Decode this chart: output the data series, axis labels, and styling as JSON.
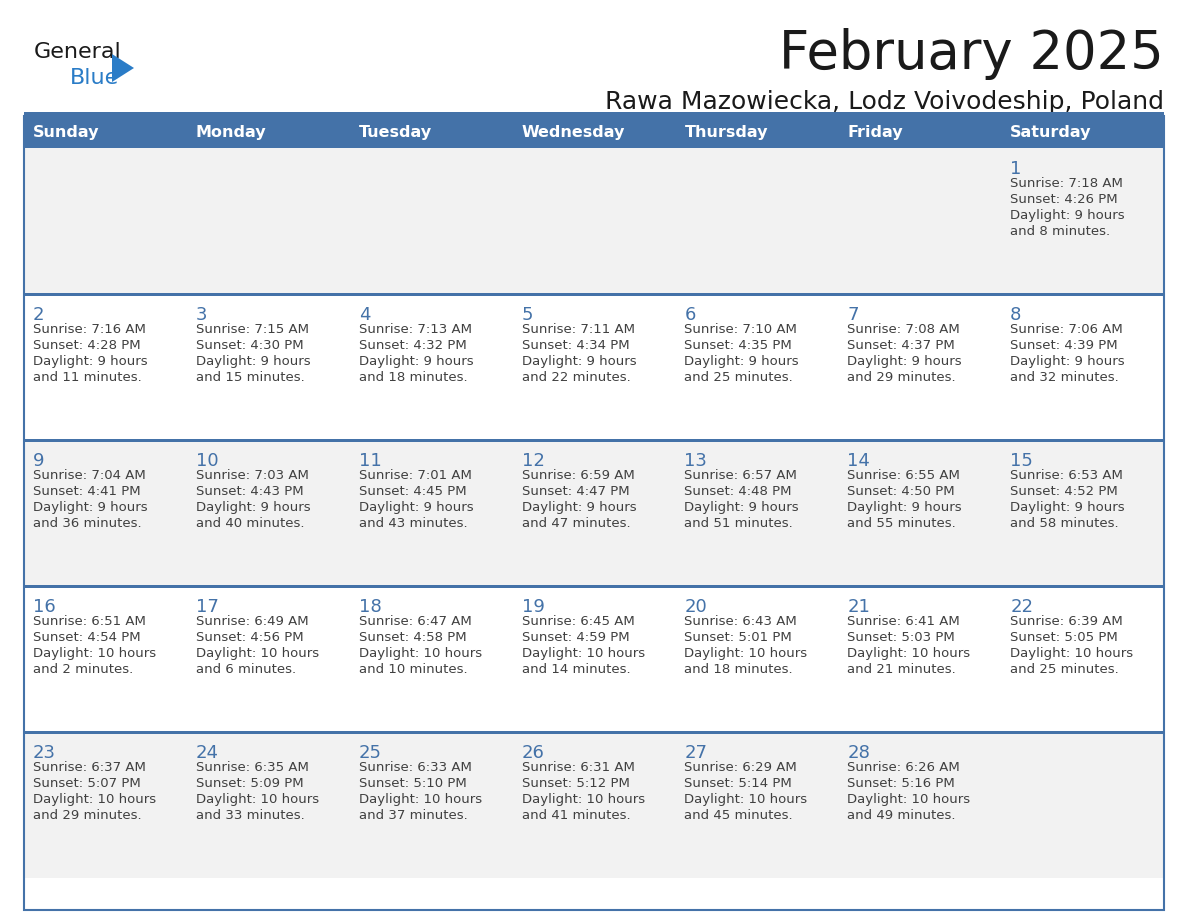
{
  "title": "February 2025",
  "subtitle": "Rawa Mazowiecka, Lodz Voivodeship, Poland",
  "days_of_week": [
    "Sunday",
    "Monday",
    "Tuesday",
    "Wednesday",
    "Thursday",
    "Friday",
    "Saturday"
  ],
  "header_bg": "#4472A8",
  "header_text": "#FFFFFF",
  "row0_bg": "#F2F2F2",
  "row1_bg": "#FFFFFF",
  "row2_bg": "#F2F2F2",
  "row3_bg": "#FFFFFF",
  "row4_bg": "#F2F2F2",
  "line_color": "#4472A8",
  "day_number_color": "#4472A8",
  "text_color": "#404040",
  "logo_general_color": "#1a1a1a",
  "logo_blue_color": "#2A7CC7",
  "fig_width": 11.88,
  "fig_height": 9.18,
  "dpi": 100,
  "calendar_data": [
    {
      "day": 1,
      "col": 6,
      "row": 0,
      "sunrise": "7:18 AM",
      "sunset": "4:26 PM",
      "daylight": "9 hours and 8 minutes."
    },
    {
      "day": 2,
      "col": 0,
      "row": 1,
      "sunrise": "7:16 AM",
      "sunset": "4:28 PM",
      "daylight": "9 hours and 11 minutes."
    },
    {
      "day": 3,
      "col": 1,
      "row": 1,
      "sunrise": "7:15 AM",
      "sunset": "4:30 PM",
      "daylight": "9 hours and 15 minutes."
    },
    {
      "day": 4,
      "col": 2,
      "row": 1,
      "sunrise": "7:13 AM",
      "sunset": "4:32 PM",
      "daylight": "9 hours and 18 minutes."
    },
    {
      "day": 5,
      "col": 3,
      "row": 1,
      "sunrise": "7:11 AM",
      "sunset": "4:34 PM",
      "daylight": "9 hours and 22 minutes."
    },
    {
      "day": 6,
      "col": 4,
      "row": 1,
      "sunrise": "7:10 AM",
      "sunset": "4:35 PM",
      "daylight": "9 hours and 25 minutes."
    },
    {
      "day": 7,
      "col": 5,
      "row": 1,
      "sunrise": "7:08 AM",
      "sunset": "4:37 PM",
      "daylight": "9 hours and 29 minutes."
    },
    {
      "day": 8,
      "col": 6,
      "row": 1,
      "sunrise": "7:06 AM",
      "sunset": "4:39 PM",
      "daylight": "9 hours and 32 minutes."
    },
    {
      "day": 9,
      "col": 0,
      "row": 2,
      "sunrise": "7:04 AM",
      "sunset": "4:41 PM",
      "daylight": "9 hours and 36 minutes."
    },
    {
      "day": 10,
      "col": 1,
      "row": 2,
      "sunrise": "7:03 AM",
      "sunset": "4:43 PM",
      "daylight": "9 hours and 40 minutes."
    },
    {
      "day": 11,
      "col": 2,
      "row": 2,
      "sunrise": "7:01 AM",
      "sunset": "4:45 PM",
      "daylight": "9 hours and 43 minutes."
    },
    {
      "day": 12,
      "col": 3,
      "row": 2,
      "sunrise": "6:59 AM",
      "sunset": "4:47 PM",
      "daylight": "9 hours and 47 minutes."
    },
    {
      "day": 13,
      "col": 4,
      "row": 2,
      "sunrise": "6:57 AM",
      "sunset": "4:48 PM",
      "daylight": "9 hours and 51 minutes."
    },
    {
      "day": 14,
      "col": 5,
      "row": 2,
      "sunrise": "6:55 AM",
      "sunset": "4:50 PM",
      "daylight": "9 hours and 55 minutes."
    },
    {
      "day": 15,
      "col": 6,
      "row": 2,
      "sunrise": "6:53 AM",
      "sunset": "4:52 PM",
      "daylight": "9 hours and 58 minutes."
    },
    {
      "day": 16,
      "col": 0,
      "row": 3,
      "sunrise": "6:51 AM",
      "sunset": "4:54 PM",
      "daylight": "10 hours and 2 minutes."
    },
    {
      "day": 17,
      "col": 1,
      "row": 3,
      "sunrise": "6:49 AM",
      "sunset": "4:56 PM",
      "daylight": "10 hours and 6 minutes."
    },
    {
      "day": 18,
      "col": 2,
      "row": 3,
      "sunrise": "6:47 AM",
      "sunset": "4:58 PM",
      "daylight": "10 hours and 10 minutes."
    },
    {
      "day": 19,
      "col": 3,
      "row": 3,
      "sunrise": "6:45 AM",
      "sunset": "4:59 PM",
      "daylight": "10 hours and 14 minutes."
    },
    {
      "day": 20,
      "col": 4,
      "row": 3,
      "sunrise": "6:43 AM",
      "sunset": "5:01 PM",
      "daylight": "10 hours and 18 minutes."
    },
    {
      "day": 21,
      "col": 5,
      "row": 3,
      "sunrise": "6:41 AM",
      "sunset": "5:03 PM",
      "daylight": "10 hours and 21 minutes."
    },
    {
      "day": 22,
      "col": 6,
      "row": 3,
      "sunrise": "6:39 AM",
      "sunset": "5:05 PM",
      "daylight": "10 hours and 25 minutes."
    },
    {
      "day": 23,
      "col": 0,
      "row": 4,
      "sunrise": "6:37 AM",
      "sunset": "5:07 PM",
      "daylight": "10 hours and 29 minutes."
    },
    {
      "day": 24,
      "col": 1,
      "row": 4,
      "sunrise": "6:35 AM",
      "sunset": "5:09 PM",
      "daylight": "10 hours and 33 minutes."
    },
    {
      "day": 25,
      "col": 2,
      "row": 4,
      "sunrise": "6:33 AM",
      "sunset": "5:10 PM",
      "daylight": "10 hours and 37 minutes."
    },
    {
      "day": 26,
      "col": 3,
      "row": 4,
      "sunrise": "6:31 AM",
      "sunset": "5:12 PM",
      "daylight": "10 hours and 41 minutes."
    },
    {
      "day": 27,
      "col": 4,
      "row": 4,
      "sunrise": "6:29 AM",
      "sunset": "5:14 PM",
      "daylight": "10 hours and 45 minutes."
    },
    {
      "day": 28,
      "col": 5,
      "row": 4,
      "sunrise": "6:26 AM",
      "sunset": "5:16 PM",
      "daylight": "10 hours and 49 minutes."
    }
  ]
}
